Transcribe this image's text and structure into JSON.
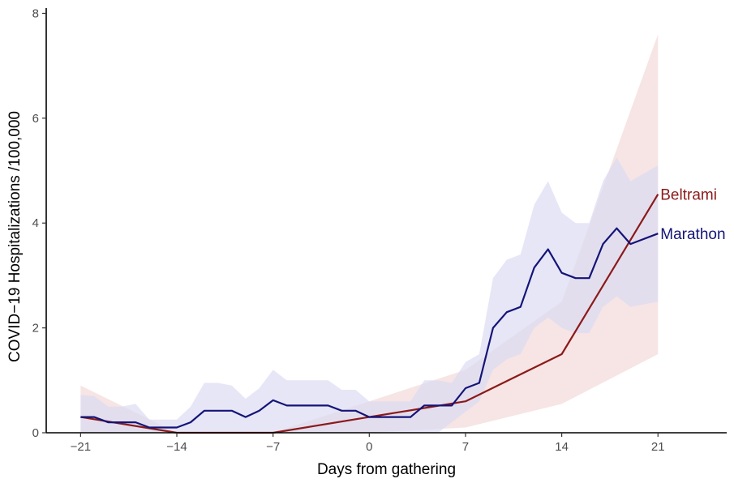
{
  "chart_data": {
    "type": "line",
    "title": "",
    "xlabel": "Days from gathering",
    "ylabel": "COVID−19 Hospitalizations /100,000",
    "xlim": [
      -23.5,
      26
    ],
    "ylim": [
      0,
      8.1
    ],
    "x_ticks": [
      -21,
      -14,
      -7,
      0,
      7,
      14,
      21
    ],
    "x_tick_labels": [
      "−21",
      "−14",
      "−7",
      "0",
      "7",
      "14",
      "21"
    ],
    "y_ticks": [
      0,
      2,
      4,
      6,
      8
    ],
    "y_tick_labels": [
      "0",
      "2",
      "4",
      "6",
      "8"
    ],
    "grid": false,
    "legend": "direct labels at line ends",
    "series": [
      {
        "name": "Beltrami",
        "color": "#8b1a1a",
        "band_color": "#f2dad8",
        "x": [
          -21,
          -14,
          -7,
          0,
          7,
          14,
          21
        ],
        "y": [
          0.3,
          0.0,
          0.0,
          0.3,
          0.6,
          1.5,
          4.55
        ],
        "lower": [
          0.0,
          0.0,
          0.0,
          0.0,
          0.1,
          0.55,
          1.5
        ],
        "upper": [
          0.9,
          0.0,
          0.0,
          0.6,
          1.2,
          2.5,
          7.6
        ]
      },
      {
        "name": "Marathon",
        "color": "#141478",
        "band_color": "#dcdcf2",
        "x": [
          -21,
          -20,
          -19,
          -18,
          -17,
          -16,
          -15,
          -14,
          -13,
          -12,
          -11,
          -10,
          -9,
          -8,
          -7,
          -6,
          -5,
          -4,
          -3,
          -2,
          -1,
          0,
          1,
          2,
          3,
          4,
          5,
          6,
          7,
          8,
          9,
          10,
          11,
          12,
          13,
          14,
          15,
          16,
          17,
          18,
          19,
          21
        ],
        "y": [
          0.3,
          0.3,
          0.2,
          0.2,
          0.2,
          0.1,
          0.1,
          0.1,
          0.2,
          0.42,
          0.42,
          0.42,
          0.3,
          0.42,
          0.62,
          0.52,
          0.52,
          0.52,
          0.52,
          0.42,
          0.42,
          0.3,
          0.3,
          0.3,
          0.3,
          0.52,
          0.52,
          0.52,
          0.85,
          0.95,
          2.0,
          2.3,
          2.4,
          3.15,
          3.5,
          3.05,
          2.95,
          2.95,
          3.6,
          3.9,
          3.6,
          3.8
        ],
        "lower": [
          0.0,
          0.0,
          0.0,
          0.0,
          0.0,
          0.0,
          0.0,
          0.0,
          0.0,
          0.0,
          0.0,
          0.0,
          0.0,
          0.0,
          0.0,
          0.0,
          0.0,
          0.0,
          0.0,
          0.0,
          0.0,
          0.0,
          0.0,
          0.0,
          0.0,
          0.0,
          0.0,
          0.2,
          0.4,
          0.6,
          1.2,
          1.4,
          1.5,
          2.0,
          2.2,
          2.0,
          1.9,
          1.9,
          2.4,
          2.6,
          2.4,
          2.5
        ],
        "upper": [
          0.72,
          0.7,
          0.5,
          0.5,
          0.55,
          0.25,
          0.25,
          0.25,
          0.5,
          0.95,
          0.95,
          0.9,
          0.65,
          0.85,
          1.2,
          1.0,
          1.0,
          1.0,
          1.0,
          0.82,
          0.82,
          0.6,
          0.6,
          0.6,
          0.6,
          1.0,
          1.0,
          0.95,
          1.35,
          1.5,
          2.95,
          3.3,
          3.4,
          4.35,
          4.8,
          4.2,
          4.0,
          4.0,
          4.8,
          5.25,
          4.8,
          5.1
        ]
      }
    ]
  }
}
